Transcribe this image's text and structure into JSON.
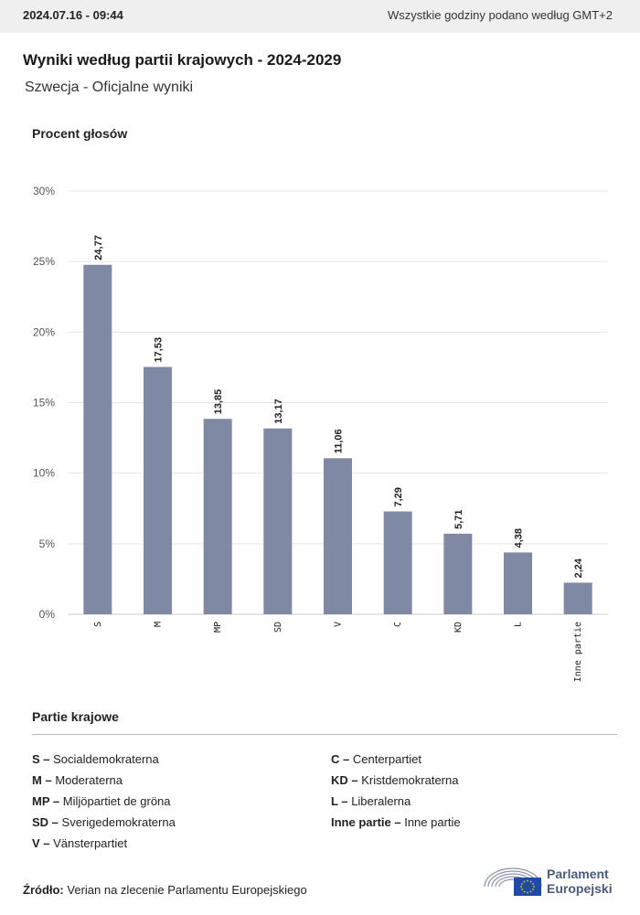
{
  "header": {
    "timestamp": "2024.07.16 - 09:44",
    "timezone_note": "Wszystkie godziny podano według GMT+2"
  },
  "title": "Wyniki według partii krajowych - 2024-2029",
  "subtitle": "Szwecja - Oficjalne wyniki",
  "colors": {
    "bar": "#7f89a3",
    "grid": "#e6e6e6",
    "axis": "#cccccc"
  },
  "chart_data": {
    "type": "bar",
    "ylabel": "Procent głosów",
    "categories": [
      "S",
      "M",
      "MP",
      "SD",
      "V",
      "C",
      "KD",
      "L",
      "Inne partie"
    ],
    "values": [
      24.77,
      17.53,
      13.85,
      13.17,
      11.06,
      7.29,
      5.71,
      4.38,
      2.24
    ],
    "value_labels": [
      "24,77",
      "17,53",
      "13,85",
      "13,17",
      "11,06",
      "7,29",
      "5,71",
      "4,38",
      "2,24"
    ],
    "ylim": [
      0,
      30
    ],
    "yticks": [
      0,
      5,
      10,
      15,
      20,
      25,
      30
    ],
    "ytick_labels": [
      "0%",
      "5%",
      "10%",
      "15%",
      "20%",
      "25%",
      "30%"
    ],
    "grid": true
  },
  "legend": {
    "title": "Partie krajowe",
    "left": [
      {
        "abbr": "S",
        "name": "Socialdemokraterna"
      },
      {
        "abbr": "M",
        "name": "Moderaterna"
      },
      {
        "abbr": "MP",
        "name": "Miljöpartiet de gröna"
      },
      {
        "abbr": "SD",
        "name": "Sverigedemokraterna"
      },
      {
        "abbr": "V",
        "name": "Vänsterpartiet"
      }
    ],
    "right": [
      {
        "abbr": "C",
        "name": "Centerpartiet"
      },
      {
        "abbr": "KD",
        "name": "Kristdemokraterna"
      },
      {
        "abbr": "L",
        "name": "Liberalerna"
      },
      {
        "abbr": "Inne partie",
        "name": "Inne partie"
      }
    ]
  },
  "source": {
    "label": "Źródło:",
    "text": "Verian na zlecenie Parlamentu Europejskiego"
  },
  "logo": {
    "line1": "Parlament",
    "line2": "Europejski"
  }
}
